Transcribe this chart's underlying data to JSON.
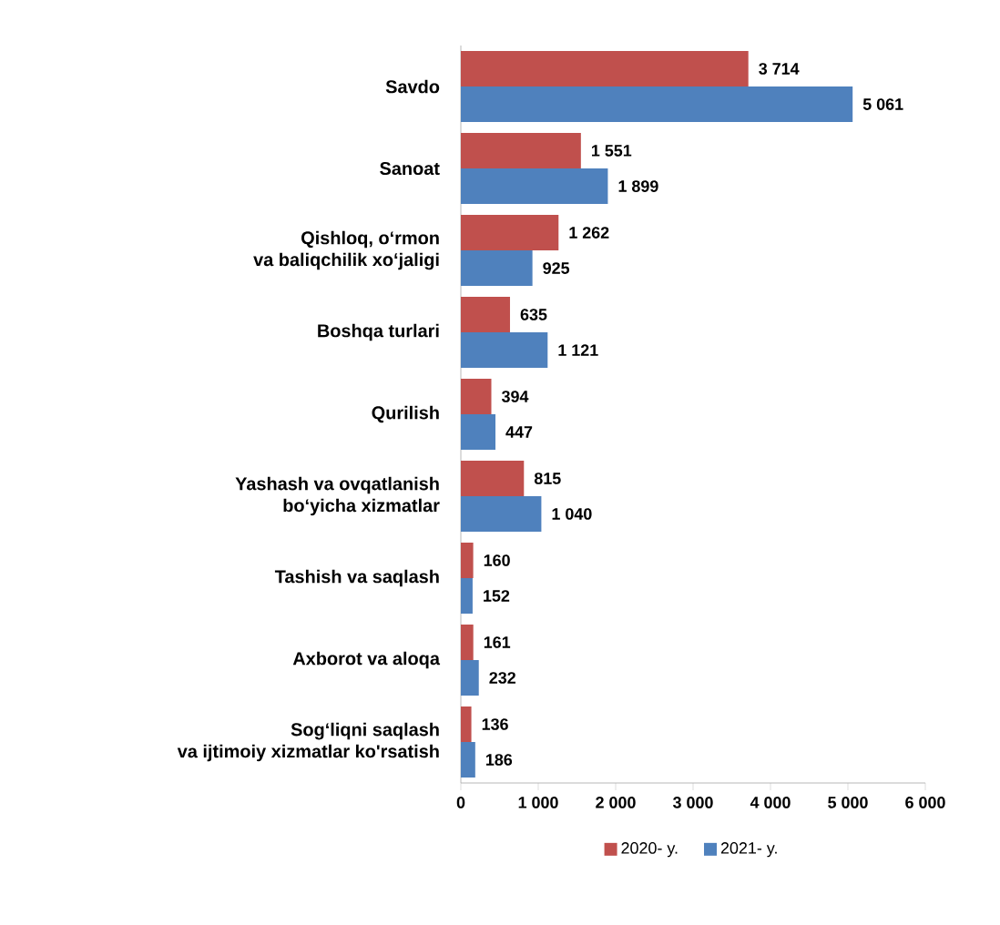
{
  "chart_data": {
    "type": "bar",
    "orientation": "horizontal",
    "categories": [
      "Savdo",
      "Sanoat",
      "Qishloq, o‘rmon\nva baliqchilik xo‘jaligi",
      "Boshqa turlari",
      "Qurilish",
      "Yashash va ovqatlanish\nbo‘yicha xizmatlar",
      "Tashish va saqlash",
      "Axborot va aloqa",
      "Sog‘liqni saqlash\nva ijtimoiy xizmatlar ko'rsatish"
    ],
    "series": [
      {
        "name": "2020- y.",
        "color": "#c0504d",
        "values": [
          3714,
          1551,
          1262,
          635,
          394,
          815,
          160,
          161,
          136
        ],
        "value_labels": [
          "3 714",
          "1 551",
          "1 262",
          "635",
          "394",
          "815",
          "160",
          "161",
          "136"
        ]
      },
      {
        "name": "2021- y.",
        "color": "#4f81bd",
        "values": [
          5061,
          1899,
          925,
          1121,
          447,
          1040,
          152,
          232,
          186
        ],
        "value_labels": [
          "5 061",
          "1 899",
          "925",
          "1 121",
          "447",
          "1 040",
          "152",
          "232",
          "186"
        ]
      }
    ],
    "xlim": [
      0,
      6000
    ],
    "xticks": [
      0,
      {
        "value": 1000,
        "label": "1 000"
      },
      {
        "value": 2000,
        "label": "2 000"
      },
      {
        "value": 3000,
        "label": "3 000"
      },
      {
        "value": 4000,
        "label": "4 000"
      },
      {
        "value": 5000,
        "label": "5 000"
      },
      {
        "value": 6000,
        "label": "6 000"
      }
    ],
    "legend": "bottom"
  }
}
